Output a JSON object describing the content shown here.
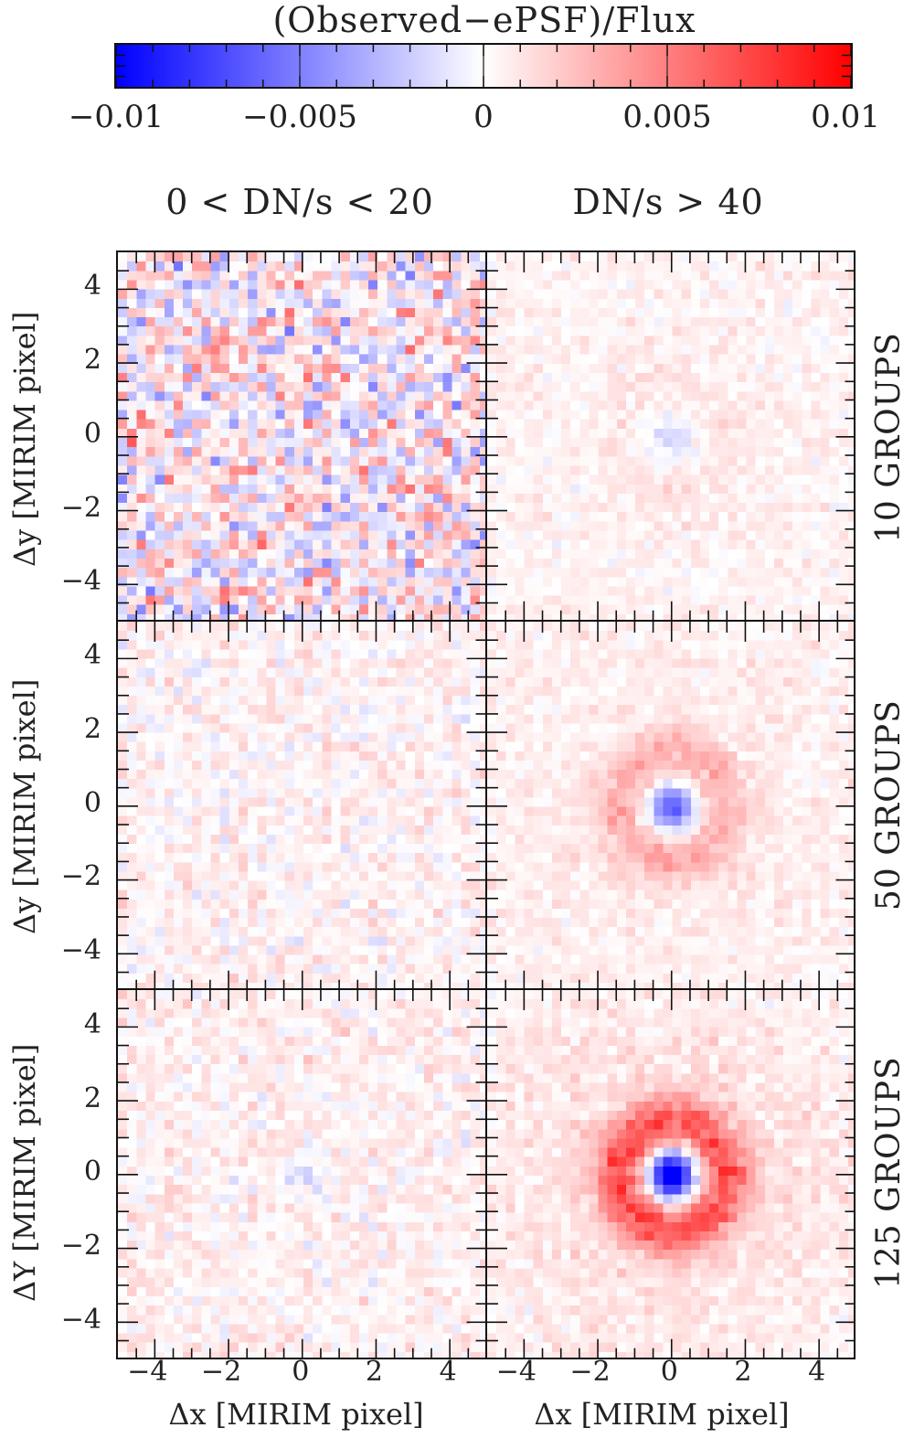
{
  "chart_data": {
    "type": "heatmap",
    "title": "(Observed−ePSF)/Flux",
    "colorbar": {
      "label": "(Observed−ePSF)/Flux",
      "range": [
        -0.01,
        0.01
      ],
      "ticks": [
        -0.01,
        -0.005,
        0,
        0.005,
        0.01
      ],
      "tick_labels": [
        "−0.01",
        "−0.005",
        "0",
        "0.005",
        "0.01"
      ],
      "colormap": [
        "#0000ff",
        "#ffffff",
        "#ff0000"
      ]
    },
    "columns": [
      {
        "label": "0 < DN/s < 20"
      },
      {
        "label": "DN/s > 40"
      }
    ],
    "rows": [
      {
        "label": "10 GROUPS",
        "ylabel": "Δy [MIRIM pixel]"
      },
      {
        "label": "50 GROUPS",
        "ylabel": "Δy [MIRIM pixel]"
      },
      {
        "label": "125 GROUPS",
        "ylabel": "ΔY [MIRIM pixel]"
      }
    ],
    "xlabel": "Δx [MIRIM pixel]",
    "ylabel": "Δy [MIRIM pixel]",
    "xlim": [
      -5,
      5
    ],
    "ylim": [
      -5,
      5
    ],
    "x_ticks": [
      -4,
      -2,
      0,
      2,
      4
    ],
    "x_tick_labels": [
      "−4",
      "−2",
      "0",
      "2",
      "4"
    ],
    "y_ticks": [
      4,
      2,
      0,
      -2,
      -4
    ],
    "y_tick_labels": [
      "4",
      "2",
      "0",
      "−2",
      "−4"
    ],
    "grid_cells_per_axis": 40,
    "panels": [
      {
        "row": 0,
        "col": 0,
        "description": "strong random noise, mixed red/blue",
        "noise_amp": 0.0038,
        "bias": 0.0004,
        "core_amp": 0.0,
        "ring_amp": 0.0,
        "seed": 11
      },
      {
        "row": 0,
        "col": 1,
        "description": "low noise, faint blue center",
        "noise_amp": 0.0008,
        "bias": 0.0004,
        "core_amp": -0.0022,
        "ring_amp": 0.0004,
        "seed": 23
      },
      {
        "row": 1,
        "col": 0,
        "description": "low noise, faint mixed",
        "noise_amp": 0.0013,
        "bias": 0.0004,
        "core_amp": 0.0,
        "ring_amp": 0.0,
        "seed": 37
      },
      {
        "row": 1,
        "col": 1,
        "description": "blue core ~ -0.007, faint red ring",
        "noise_amp": 0.0008,
        "bias": 0.0004,
        "core_amp": -0.0075,
        "ring_amp": 0.0022,
        "seed": 41
      },
      {
        "row": 2,
        "col": 0,
        "description": "low noise, faint blue center",
        "noise_amp": 0.0012,
        "bias": 0.0005,
        "core_amp": -0.0015,
        "ring_amp": 0.0,
        "seed": 53
      },
      {
        "row": 2,
        "col": 1,
        "description": "saturated blue core ≤ -0.01, strong red ring ~ +0.006",
        "noise_amp": 0.0009,
        "bias": 0.0004,
        "core_amp": -0.014,
        "ring_amp": 0.0052,
        "seed": 67
      }
    ]
  },
  "labels": {
    "colorbar_title": "(Observed−ePSF)/Flux",
    "col_titles": [
      "0 < DN/s < 20",
      "DN/s > 40"
    ],
    "row_labels": [
      "10 GROUPS",
      "50 GROUPS",
      "125 GROUPS"
    ],
    "ylabels": [
      "Δy [MIRIM pixel]",
      "Δy [MIRIM pixel]",
      "ΔY [MIRIM pixel]"
    ],
    "xlabels": [
      "Δx [MIRIM pixel]",
      "Δx [MIRIM pixel]"
    ],
    "cb_ticks": [
      "−0.01",
      "−0.005",
      "0",
      "0.005",
      "0.01"
    ],
    "x_ticks": [
      "−4",
      "−2",
      "0",
      "2",
      "4"
    ],
    "y_ticks": [
      "4",
      "2",
      "0",
      "−2",
      "−4"
    ]
  }
}
